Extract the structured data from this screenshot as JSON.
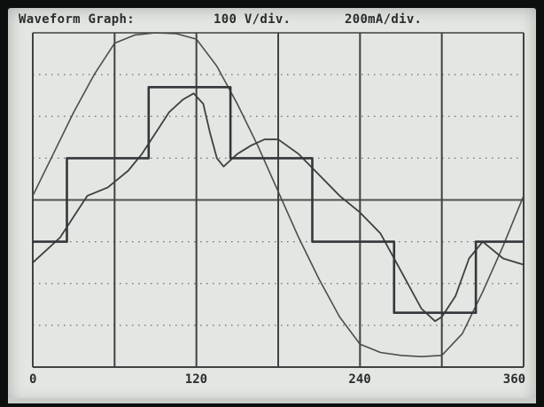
{
  "header": {
    "title": "Waveform Graph:",
    "voltage_scale": "100  V/div.",
    "current_scale": "200mA/div."
  },
  "chart_data": {
    "type": "line",
    "x_ticks": [
      "0",
      "120",
      "240",
      "360"
    ],
    "xlim": [
      0,
      360
    ],
    "ylim": [
      -4,
      4
    ],
    "x_divisions": 6,
    "y_divisions": 8,
    "grid": "major vertical lines solid, horizontal lines dotted",
    "series": [
      {
        "x": [
          0,
          15,
          30,
          45,
          60,
          75,
          90,
          105,
          120,
          135,
          150,
          165,
          180,
          195,
          210,
          225,
          240,
          255,
          270,
          285,
          300,
          315,
          330,
          345,
          360
        ],
        "y": [
          0.1,
          1.1,
          2.1,
          3.0,
          3.75,
          3.95,
          4.0,
          3.98,
          3.85,
          3.2,
          2.3,
          1.3,
          0.2,
          -0.9,
          -1.9,
          -2.8,
          -3.45,
          -3.65,
          -3.72,
          -3.75,
          -3.72,
          -3.2,
          -2.2,
          -1.1,
          0.1
        ],
        "color": "#4a4e4b"
      },
      {
        "x": [
          0,
          10,
          20,
          30,
          40,
          55,
          70,
          80,
          90,
          100,
          110,
          118,
          125,
          130,
          135,
          140,
          150,
          160,
          170,
          180,
          195,
          210,
          225,
          240,
          255,
          270,
          285,
          295,
          300,
          310,
          320,
          330,
          345,
          360
        ],
        "y": [
          -1.5,
          -1.2,
          -0.9,
          -0.4,
          0.1,
          0.3,
          0.7,
          1.1,
          1.6,
          2.1,
          2.4,
          2.55,
          2.3,
          1.6,
          1.0,
          0.8,
          1.1,
          1.3,
          1.45,
          1.45,
          1.1,
          0.6,
          0.1,
          -0.3,
          -0.8,
          -1.7,
          -2.6,
          -2.9,
          -2.8,
          -2.3,
          -1.4,
          -1.0,
          -1.4,
          -1.55
        ],
        "color": "#3c403e"
      },
      {
        "x": [
          0,
          25,
          25,
          85,
          85,
          145,
          145,
          205,
          205,
          265,
          265,
          325,
          325,
          360
        ],
        "y": [
          -1.0,
          -1.0,
          1.0,
          1.0,
          2.7,
          2.7,
          1.0,
          1.0,
          -1.0,
          -1.0,
          -2.7,
          -2.7,
          -1.0,
          -1.0
        ],
        "color": "#33373a"
      }
    ]
  }
}
